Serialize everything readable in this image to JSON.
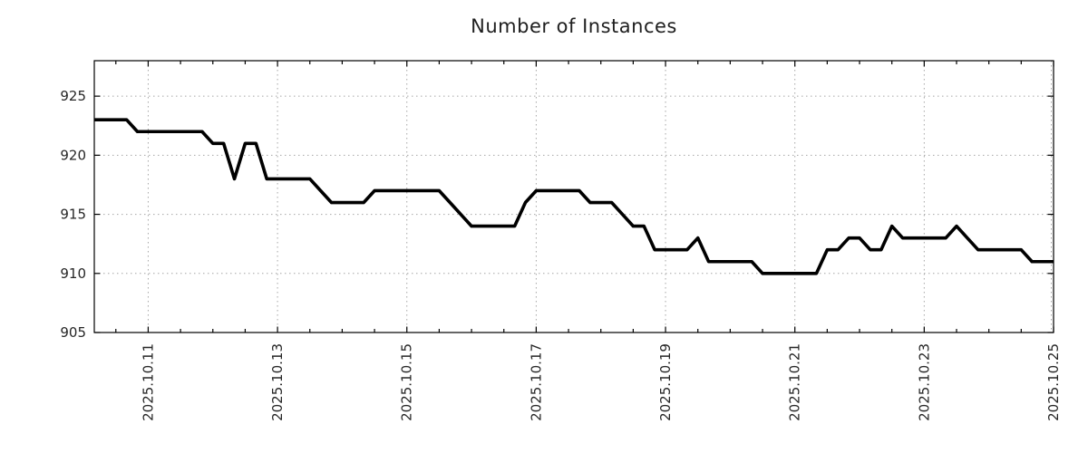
{
  "title": "Number of Instances",
  "chart_data": {
    "type": "line",
    "title": "Number of Instances",
    "xlabel": "",
    "ylabel": "",
    "legend": "none",
    "grid": "dotted",
    "x_start": "2025-10-10 04:00",
    "x_step_hours": 4,
    "ylim": [
      905,
      928
    ],
    "y_ticks": [
      905,
      910,
      915,
      920,
      925
    ],
    "x_ticks": [
      {
        "label": "2025.10.11",
        "index": 5
      },
      {
        "label": "2025.10.13",
        "index": 17
      },
      {
        "label": "2025.10.15",
        "index": 29
      },
      {
        "label": "2025.10.17",
        "index": 41
      },
      {
        "label": "2025.10.19",
        "index": 53
      },
      {
        "label": "2025.10.21",
        "index": 65
      },
      {
        "label": "2025.10.23",
        "index": 77
      },
      {
        "label": "2025.10.25",
        "index": 89
      }
    ],
    "minor_tick_every": 3,
    "minor_tick_phase": 2,
    "series": [
      {
        "name": "instances",
        "values": [
          923,
          923,
          923,
          923,
          922,
          922,
          922,
          922,
          922,
          922,
          922,
          921,
          921,
          918,
          921,
          921,
          918,
          918,
          918,
          918,
          918,
          917,
          916,
          916,
          916,
          916,
          917,
          917,
          917,
          917,
          917,
          917,
          917,
          916,
          915,
          914,
          914,
          914,
          914,
          914,
          916,
          917,
          917,
          917,
          917,
          917,
          916,
          916,
          916,
          915,
          914,
          914,
          912,
          912,
          912,
          912,
          913,
          911,
          911,
          911,
          911,
          911,
          910,
          910,
          910,
          910,
          910,
          910,
          912,
          912,
          913,
          913,
          912,
          912,
          914,
          913,
          913,
          913,
          913,
          913,
          914,
          913,
          912,
          912,
          912,
          912,
          912,
          911,
          911,
          911
        ]
      }
    ],
    "styles": {
      "line_color": "#000000",
      "line_width": 3.6,
      "grid_color": "#a6a6a6",
      "border_color": "#000000",
      "text_color": "#262626",
      "background": "#ffffff"
    }
  }
}
